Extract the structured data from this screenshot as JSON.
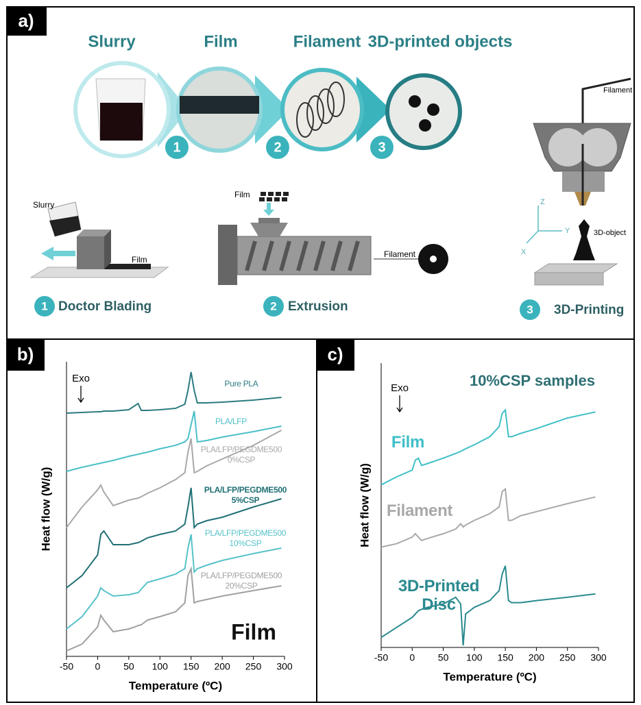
{
  "panel_labels": [
    "a)",
    "b)",
    "c)"
  ],
  "diagram": {
    "stage_titles": [
      "Slurry",
      "Film",
      "Filament",
      "3D-printed objects"
    ],
    "step_numbers": [
      "1",
      "2",
      "3"
    ],
    "steps": [
      {
        "number": "1",
        "label": "Doctor Blading"
      },
      {
        "number": "2",
        "label": "Extrusion"
      },
      {
        "number": "3",
        "label": "3D-Printing"
      }
    ],
    "callouts": {
      "slurry": "Slurry",
      "film_blade": "Film",
      "film_hopper": "Film",
      "filament_extruder": "Filament",
      "filament_printer": "Filament",
      "object": "3D-object",
      "axes": [
        "Z",
        "Y",
        "X"
      ]
    }
  },
  "chart_data": [
    {
      "type": "line",
      "ylabel": "Heat flow (W/g)",
      "xlabel": "Temperature (ºC)",
      "annotation": "Film",
      "exo_label": "Exo",
      "x": [
        -50,
        -25,
        0,
        5,
        10,
        25,
        50,
        60,
        65,
        70,
        80,
        100,
        125,
        140,
        145,
        150,
        155,
        160,
        175,
        200,
        250,
        295
      ],
      "xlim": [
        -50,
        300
      ],
      "xticks": [
        -50,
        0,
        50,
        100,
        150,
        200,
        250,
        300
      ],
      "ylim": [
        0,
        430
      ],
      "series": [
        {
          "name": "Pure PLA",
          "color": "#2b7b80",
          "values": [
            355,
            356,
            357,
            357,
            358,
            358,
            360,
            366,
            369,
            359,
            359,
            360,
            362,
            368,
            388,
            415,
            388,
            370,
            370,
            371,
            374,
            378
          ]
        },
        {
          "name": "PLA/LFP",
          "color": "#4bbfc7",
          "values": [
            270,
            276,
            281,
            282,
            283,
            286,
            292,
            294,
            295,
            296,
            298,
            303,
            308,
            313,
            318,
            338,
            358,
            313,
            315,
            320,
            328,
            336
          ]
        },
        {
          "name": "PLA/LFP/PEGDME500 0%CSP",
          "color": "#a8a8a8",
          "values": [
            188,
            218,
            243,
            250,
            240,
            220,
            228,
            230,
            231,
            233,
            238,
            246,
            258,
            268,
            298,
            318,
            268,
            270,
            278,
            288,
            308,
            330
          ]
        },
        {
          "name": "PLA/LFP/PEGDME500 5%CSP",
          "color": "#1f6f74",
          "values": [
            100,
            118,
            148,
            178,
            183,
            163,
            163,
            165,
            166,
            168,
            173,
            178,
            183,
            193,
            218,
            246,
            188,
            193,
            198,
            203,
            218,
            230
          ]
        },
        {
          "name": "PLA/LFP/PEGDME500 10%CSP",
          "color": "#56c2c8",
          "values": [
            40,
            58,
            88,
            100,
            96,
            88,
            90,
            92,
            93,
            98,
            108,
            113,
            120,
            128,
            158,
            178,
            123,
            128,
            133,
            140,
            150,
            158
          ]
        },
        {
          "name": "PLA/LFP/PEGDME500 20%CSP",
          "color": "#a0a0a0",
          "values": [
            8,
            18,
            43,
            60,
            53,
            36,
            40,
            43,
            45,
            46,
            53,
            58,
            65,
            78,
            118,
            128,
            78,
            80,
            83,
            88,
            96,
            103
          ]
        }
      ]
    },
    {
      "type": "line",
      "ylabel": "Heat flow (W/g)",
      "xlabel": "Temperature (ºC)",
      "annotation": "10%CSP samples",
      "exo_label": "Exo",
      "x": [
        -50,
        -25,
        0,
        5,
        10,
        15,
        25,
        50,
        70,
        78,
        82,
        86,
        100,
        125,
        140,
        145,
        150,
        155,
        160,
        175,
        200,
        250,
        295
      ],
      "xlim": [
        -50,
        300
      ],
      "xticks": [
        -50,
        0,
        50,
        100,
        150,
        200,
        250,
        300
      ],
      "ylim": [
        -10,
        415
      ],
      "series": [
        {
          "name": "Film",
          "color": "#3fbfc7",
          "values": [
            233,
            245,
            255,
            270,
            273,
            262,
            265,
            273,
            280,
            283,
            285,
            287,
            293,
            305,
            320,
            340,
            345,
            305,
            305,
            310,
            317,
            333,
            342
          ]
        },
        {
          "name": "Filament",
          "color": "#a9a9a9",
          "values": [
            140,
            145,
            155,
            160,
            155,
            150,
            153,
            160,
            167,
            175,
            170,
            173,
            180,
            190,
            200,
            223,
            227,
            180,
            180,
            187,
            193,
            205,
            215
          ]
        },
        {
          "name": "3D-Printed Disc",
          "color": "#2a8a8f",
          "values": [
            5,
            20,
            35,
            40,
            45,
            47,
            50,
            55,
            65,
            55,
            -7,
            40,
            50,
            60,
            75,
            100,
            112,
            60,
            57,
            57,
            60,
            65,
            70
          ]
        }
      ]
    }
  ]
}
